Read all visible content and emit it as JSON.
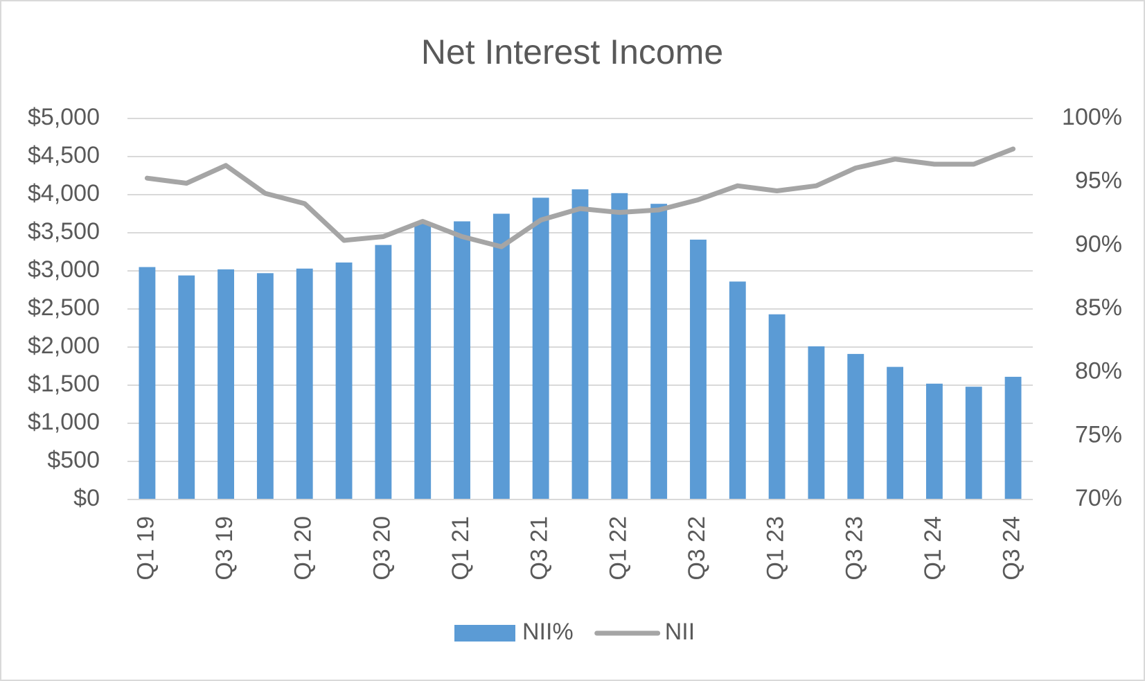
{
  "chart_data": {
    "type": "bar_line",
    "title": "Net Interest Income",
    "categories": [
      "Q1 19",
      null,
      "Q3 19",
      null,
      "Q1 20",
      null,
      "Q3 20",
      null,
      "Q1 21",
      null,
      "Q3 21",
      null,
      "Q1 22",
      null,
      "Q3 22",
      null,
      "Q1 23",
      null,
      "Q3 23",
      null,
      "Q1 24",
      null,
      "Q3 24"
    ],
    "series": [
      {
        "name": "NII%",
        "type": "bar",
        "color": "#5b9bd5",
        "axis": "y",
        "values": [
          3050,
          2940,
          3020,
          2970,
          3030,
          3110,
          3340,
          3620,
          3650,
          3750,
          3960,
          4070,
          4020,
          3880,
          3410,
          2860,
          2430,
          2010,
          1910,
          1740,
          1520,
          1480,
          1610
        ]
      },
      {
        "name": "NII",
        "type": "line",
        "color": "#a5a5a5",
        "axis": "y2",
        "values": [
          95.3,
          94.9,
          96.3,
          94.1,
          93.3,
          90.4,
          90.7,
          91.9,
          90.7,
          89.9,
          92.0,
          92.9,
          92.6,
          92.8,
          93.6,
          94.7,
          94.3,
          94.7,
          96.1,
          96.8,
          96.4,
          96.4,
          97.6
        ]
      }
    ],
    "ylim": [
      0,
      5000
    ],
    "yticks": [
      {
        "value": 0,
        "label": "$0"
      },
      {
        "value": 500,
        "label": "$500"
      },
      {
        "value": 1000,
        "label": "$1,000"
      },
      {
        "value": 1500,
        "label": "$1,500"
      },
      {
        "value": 2000,
        "label": "$2,000"
      },
      {
        "value": 2500,
        "label": "$2,500"
      },
      {
        "value": 3000,
        "label": "$3,000"
      },
      {
        "value": 3500,
        "label": "$3,500"
      },
      {
        "value": 4000,
        "label": "$4,000"
      },
      {
        "value": 4500,
        "label": "$4,500"
      },
      {
        "value": 5000,
        "label": "$5,000"
      }
    ],
    "y2lim": [
      70,
      100
    ],
    "y2ticks": [
      {
        "value": 70,
        "label": "70%"
      },
      {
        "value": 75,
        "label": "75%"
      },
      {
        "value": 80,
        "label": "80%"
      },
      {
        "value": 85,
        "label": "85%"
      },
      {
        "value": 90,
        "label": "90%"
      },
      {
        "value": 95,
        "label": "95%"
      },
      {
        "value": 100,
        "label": "100%"
      }
    ],
    "grid": true,
    "legend": "bottom"
  }
}
